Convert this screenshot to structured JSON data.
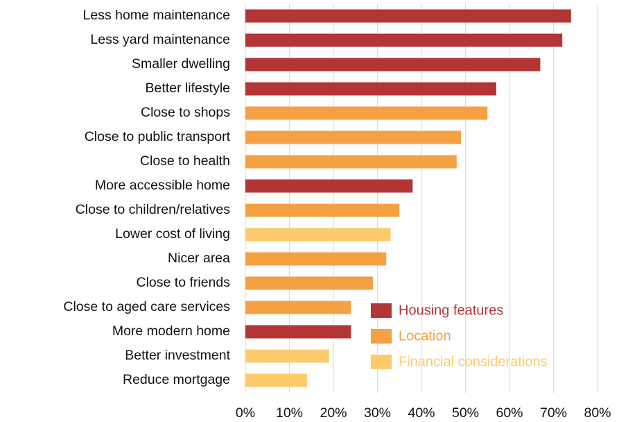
{
  "chart_data": {
    "type": "bar",
    "orientation": "horizontal",
    "categories": [
      "Less home maintenance",
      "Less yard maintenance",
      "Smaller dwelling",
      "Better lifestyle",
      "Close to shops",
      "Close to public transport",
      "Close to health",
      "More accessible home",
      "Close to children/relatives",
      "Lower cost of living",
      "Nicer area",
      "Close to friends",
      "Close to aged care services",
      "More modern home",
      "Better investment",
      "Reduce mortgage"
    ],
    "series": [
      {
        "name": "Housing features",
        "color": "#b33535",
        "values": [
          74,
          72,
          67,
          57,
          null,
          null,
          null,
          38,
          null,
          null,
          null,
          null,
          null,
          24,
          null,
          null
        ]
      },
      {
        "name": "Location",
        "color": "#f5a042",
        "values": [
          null,
          null,
          null,
          null,
          55,
          49,
          48,
          null,
          35,
          null,
          32,
          29,
          24,
          null,
          null,
          null
        ]
      },
      {
        "name": "Financial considerations",
        "color": "#fdca6c",
        "values": [
          null,
          null,
          null,
          null,
          null,
          null,
          null,
          null,
          null,
          33,
          null,
          null,
          null,
          null,
          19,
          14
        ]
      }
    ],
    "xlim": [
      0,
      80
    ],
    "xticks": [
      {
        "value": 0,
        "label": "0%"
      },
      {
        "value": 10,
        "label": "10%"
      },
      {
        "value": 20,
        "label": "20%"
      },
      {
        "value": 30,
        "label": "30%"
      },
      {
        "value": 40,
        "label": "40%"
      },
      {
        "value": 50,
        "label": "50%"
      },
      {
        "value": 60,
        "label": "60%"
      },
      {
        "value": 70,
        "label": "70%"
      },
      {
        "value": 80,
        "label": "80%"
      }
    ],
    "grid": true,
    "legend": "lower right"
  }
}
